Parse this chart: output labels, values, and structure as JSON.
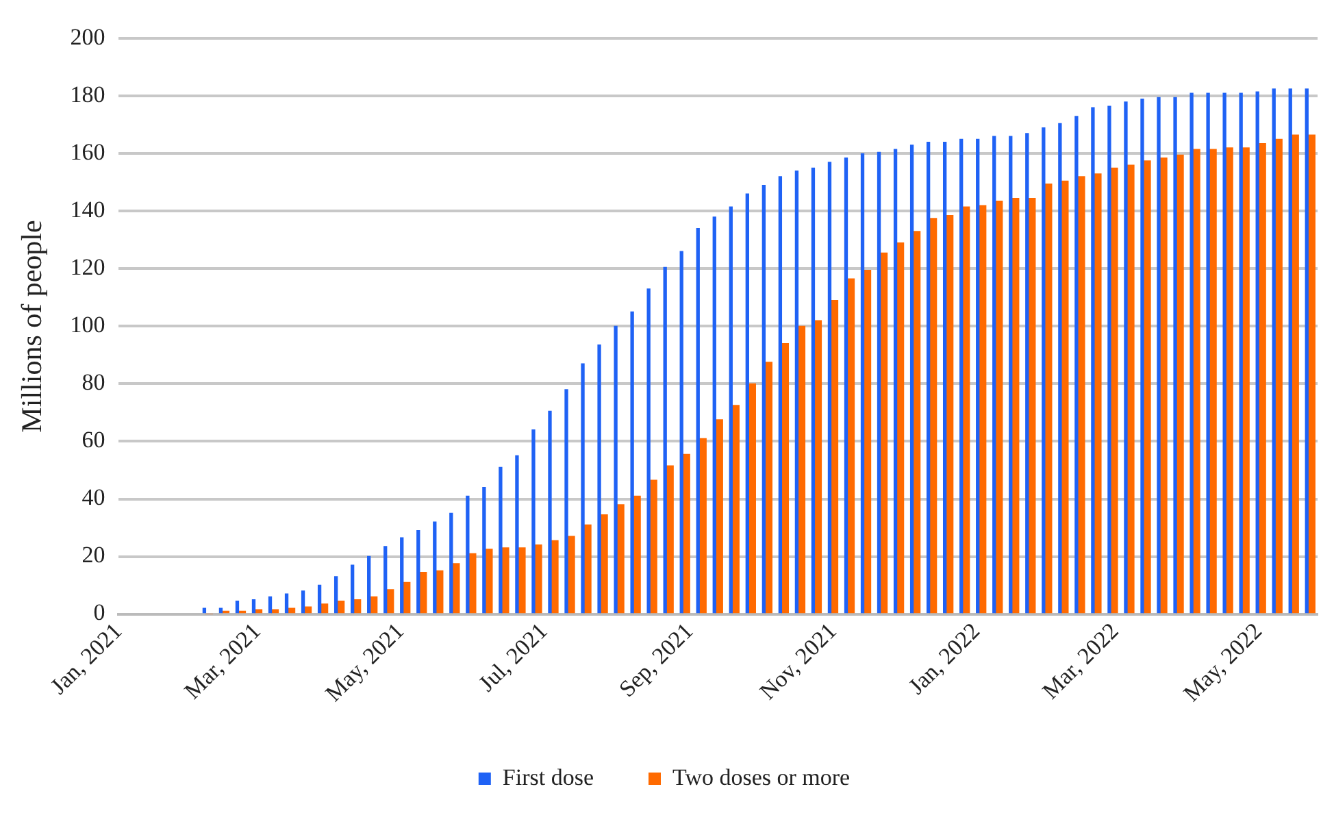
{
  "chart_data": {
    "type": "bar",
    "ylabel": "Millions of people",
    "x": [
      "2021-02-07",
      "2021-02-14",
      "2021-02-21",
      "2021-02-28",
      "2021-03-07",
      "2021-03-14",
      "2021-03-21",
      "2021-03-28",
      "2021-04-04",
      "2021-04-11",
      "2021-04-18",
      "2021-04-25",
      "2021-05-02",
      "2021-05-09",
      "2021-05-16",
      "2021-05-23",
      "2021-05-30",
      "2021-06-06",
      "2021-06-13",
      "2021-06-20",
      "2021-06-27",
      "2021-07-04",
      "2021-07-11",
      "2021-07-18",
      "2021-07-25",
      "2021-08-01",
      "2021-08-08",
      "2021-08-15",
      "2021-08-22",
      "2021-08-29",
      "2021-09-05",
      "2021-09-12",
      "2021-09-19",
      "2021-09-26",
      "2021-10-03",
      "2021-10-10",
      "2021-10-17",
      "2021-10-24",
      "2021-10-31",
      "2021-11-07",
      "2021-11-14",
      "2021-11-21",
      "2021-11-28",
      "2021-12-05",
      "2021-12-12",
      "2021-12-19",
      "2021-12-26",
      "2022-01-02",
      "2022-01-09",
      "2022-01-16",
      "2022-01-23",
      "2022-01-30",
      "2022-02-06",
      "2022-02-13",
      "2022-02-20",
      "2022-02-27",
      "2022-03-06",
      "2022-03-13",
      "2022-03-20",
      "2022-03-27",
      "2022-04-03",
      "2022-04-10",
      "2022-04-17",
      "2022-04-24",
      "2022-05-01",
      "2022-05-08",
      "2022-05-15",
      "2022-05-22"
    ],
    "series": [
      {
        "name": "First dose",
        "color": "#1f62f5",
        "values": [
          2,
          2,
          4.5,
          5,
          6,
          7,
          8,
          10,
          13,
          17,
          20,
          23.5,
          26.5,
          29,
          32,
          35,
          41,
          44,
          51,
          55,
          64,
          70.5,
          78,
          87,
          93.5,
          100,
          105,
          113,
          120.5,
          126,
          134,
          138,
          141.5,
          146,
          149,
          152,
          154,
          155,
          157,
          158.5,
          160,
          160.5,
          161.5,
          163,
          164,
          164,
          165,
          165,
          166,
          166,
          167,
          169,
          170.5,
          173,
          176,
          176.5,
          178,
          179,
          179.5,
          179.5,
          181,
          181,
          181,
          181,
          181.5,
          182.5,
          182.5,
          182.5
        ]
      },
      {
        "name": "Two doses or more",
        "color": "#ff6a00",
        "values": [
          0,
          1,
          1,
          1.5,
          1.5,
          2,
          2.5,
          3.5,
          4.5,
          5,
          6,
          8.5,
          11,
          14.5,
          15,
          17.5,
          21,
          22.5,
          23,
          23,
          24,
          25.5,
          27,
          31,
          34.5,
          38,
          41,
          46.5,
          51.5,
          55.5,
          61,
          67.5,
          72.5,
          80,
          87.5,
          94,
          100,
          102,
          109,
          116.5,
          119.5,
          125.5,
          129,
          133,
          137.5,
          138.5,
          141.5,
          142,
          143.5,
          144.5,
          144.5,
          149.5,
          150.5,
          152,
          153,
          155,
          156,
          157.5,
          158.5,
          159.5,
          161.5,
          161.5,
          162,
          162,
          163.5,
          165,
          166.5,
          166.5
        ]
      }
    ],
    "xlim": [
      "2021-01-01",
      "2022-05-26"
    ],
    "xticks": [
      {
        "value": "2021-01-01",
        "label": "Jan, 2021"
      },
      {
        "value": "2021-03-01",
        "label": "Mar, 2021"
      },
      {
        "value": "2021-05-01",
        "label": "May, 2021"
      },
      {
        "value": "2021-07-01",
        "label": "Jul, 2021"
      },
      {
        "value": "2021-09-01",
        "label": "Sep, 2021"
      },
      {
        "value": "2021-11-01",
        "label": "Nov, 2021"
      },
      {
        "value": "2022-01-01",
        "label": "Jan, 2022"
      },
      {
        "value": "2022-03-01",
        "label": "Mar, 2022"
      },
      {
        "value": "2022-05-01",
        "label": "May, 2022"
      }
    ],
    "ylim": [
      0,
      200
    ],
    "yticks": [
      0,
      20,
      40,
      60,
      80,
      100,
      120,
      140,
      160,
      180,
      200
    ],
    "grid": "y",
    "legend": "bottom"
  }
}
